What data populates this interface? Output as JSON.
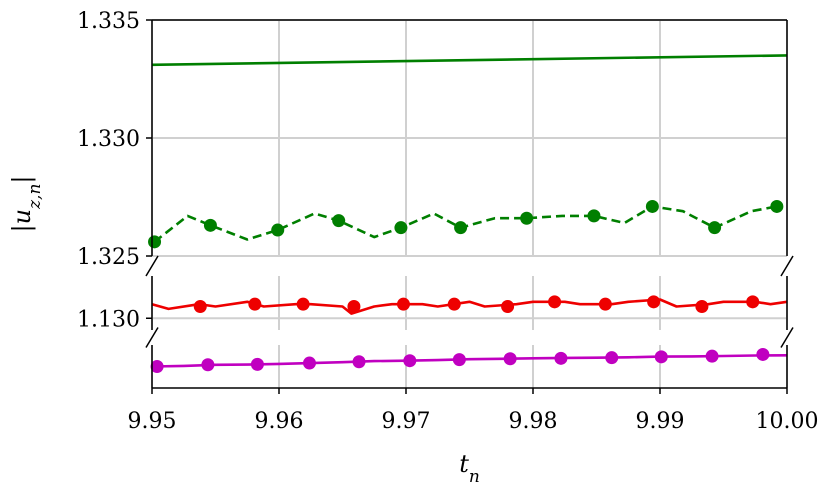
{
  "chart_data": {
    "type": "line",
    "title": "",
    "xlabel": "t_n",
    "ylabel": "|u_{z,n}|",
    "x_range": [
      9.95,
      10.0
    ],
    "x_ticks": [
      "9.95",
      "9.96",
      "9.97",
      "9.98",
      "9.99",
      "10.00"
    ],
    "grid": true,
    "legend": "none",
    "broken_y_axis": true,
    "panels": [
      {
        "name": "top",
        "y_range": [
          1.325,
          1.335
        ],
        "y_ticks": [
          "1.325",
          "1.330",
          "1.335"
        ],
        "series": [
          {
            "color": "#007f00",
            "style": "solid",
            "markers": false,
            "x": [
              9.95,
              10.0
            ],
            "y": [
              1.3331,
              1.3335
            ]
          },
          {
            "color": "#007f00",
            "style": "dashed",
            "markers": true,
            "x": [
              9.9502,
              9.9528,
              9.9546,
              9.9575,
              9.9599,
              9.9628,
              9.9647,
              9.9675,
              9.9696,
              9.9722,
              9.9743,
              9.977,
              9.9795,
              9.9823,
              9.9848,
              9.9872,
              9.9894,
              9.9918,
              9.9943,
              9.9972,
              9.9992
            ],
            "y": [
              1.3256,
              1.3267,
              1.3263,
              1.3257,
              1.3261,
              1.3268,
              1.3265,
              1.3258,
              1.3262,
              1.3268,
              1.3262,
              1.3266,
              1.3266,
              1.3267,
              1.3267,
              1.3264,
              1.3271,
              1.3269,
              1.3262,
              1.3269,
              1.3271
            ],
            "marker_x": [
              9.9502,
              9.9546,
              9.9599,
              9.9647,
              9.9696,
              9.9743,
              9.9795,
              9.9848,
              9.9894,
              9.9943,
              9.9992
            ],
            "marker_y": [
              1.3256,
              1.3263,
              1.3261,
              1.3265,
              1.3262,
              1.3262,
              1.3266,
              1.3267,
              1.3271,
              1.3262,
              1.3271
            ]
          }
        ]
      },
      {
        "name": "middle",
        "y_range": [
          1.1295,
          1.1318
        ],
        "y_ticks": [
          "1.130"
        ],
        "series": [
          {
            "color": "#ee0000",
            "style": "solid",
            "markers": true,
            "x": [
              9.95,
              9.9513,
              9.9537,
              9.955,
              9.9575,
              9.9588,
              9.9613,
              9.9625,
              9.965,
              9.9657,
              9.9675,
              9.9689,
              9.9713,
              9.9725,
              9.975,
              9.9762,
              9.9787,
              9.98,
              9.9825,
              9.9837,
              9.9862,
              9.9875,
              9.99,
              9.9913,
              9.9938,
              9.995,
              9.9975,
              9.9987,
              10.0
            ],
            "y": [
              1.1306,
              1.1304,
              1.1306,
              1.1305,
              1.1307,
              1.1305,
              1.1306,
              1.1306,
              1.1305,
              1.1302,
              1.1305,
              1.1306,
              1.1306,
              1.1305,
              1.1307,
              1.1305,
              1.1306,
              1.1307,
              1.1307,
              1.1306,
              1.1306,
              1.1307,
              1.1308,
              1.1305,
              1.1306,
              1.1307,
              1.1307,
              1.1306,
              1.1307
            ],
            "marker_x": [
              9.9538,
              9.9581,
              9.9619,
              9.9659,
              9.9698,
              9.9738,
              9.978,
              9.9817,
              9.9857,
              9.9895,
              9.9933,
              9.9973
            ],
            "marker_y": [
              1.1305,
              1.1306,
              1.1306,
              1.1305,
              1.1306,
              1.1306,
              1.1305,
              1.1307,
              1.1306,
              1.1307,
              1.1305,
              1.1307
            ]
          }
        ]
      },
      {
        "name": "bottom",
        "y_range": [
          0.9,
          1.1
        ],
        "y_ticks": [],
        "series": [
          {
            "color": "#c000c0",
            "style": "solid",
            "markers": true,
            "x": [
              9.95,
              9.9525,
              9.955,
              9.9575,
              9.96,
              9.9625,
              9.965,
              9.9675,
              9.97,
              9.9725,
              9.975,
              9.9775,
              9.98,
              9.9825,
              9.985,
              9.9875,
              9.99,
              9.9925,
              9.995,
              9.9975,
              10.0
            ],
            "y": [
              1.0,
              1.003,
              1.008,
              1.009,
              1.012,
              1.016,
              1.02,
              1.025,
              1.027,
              1.03,
              1.034,
              1.036,
              1.038,
              1.04,
              1.041,
              1.043,
              1.046,
              1.047,
              1.049,
              1.051,
              1.052
            ],
            "marker_x": [
              9.9504,
              9.9544,
              9.9583,
              9.9624,
              9.9663,
              9.9703,
              9.9742,
              9.9782,
              9.9822,
              9.9862,
              9.9901,
              9.9941,
              9.9981
            ],
            "marker_y": [
              1.0,
              1.008,
              1.01,
              1.016,
              1.022,
              1.027,
              1.032,
              1.036,
              1.038,
              1.041,
              1.045,
              1.048,
              1.056
            ]
          }
        ]
      }
    ]
  }
}
